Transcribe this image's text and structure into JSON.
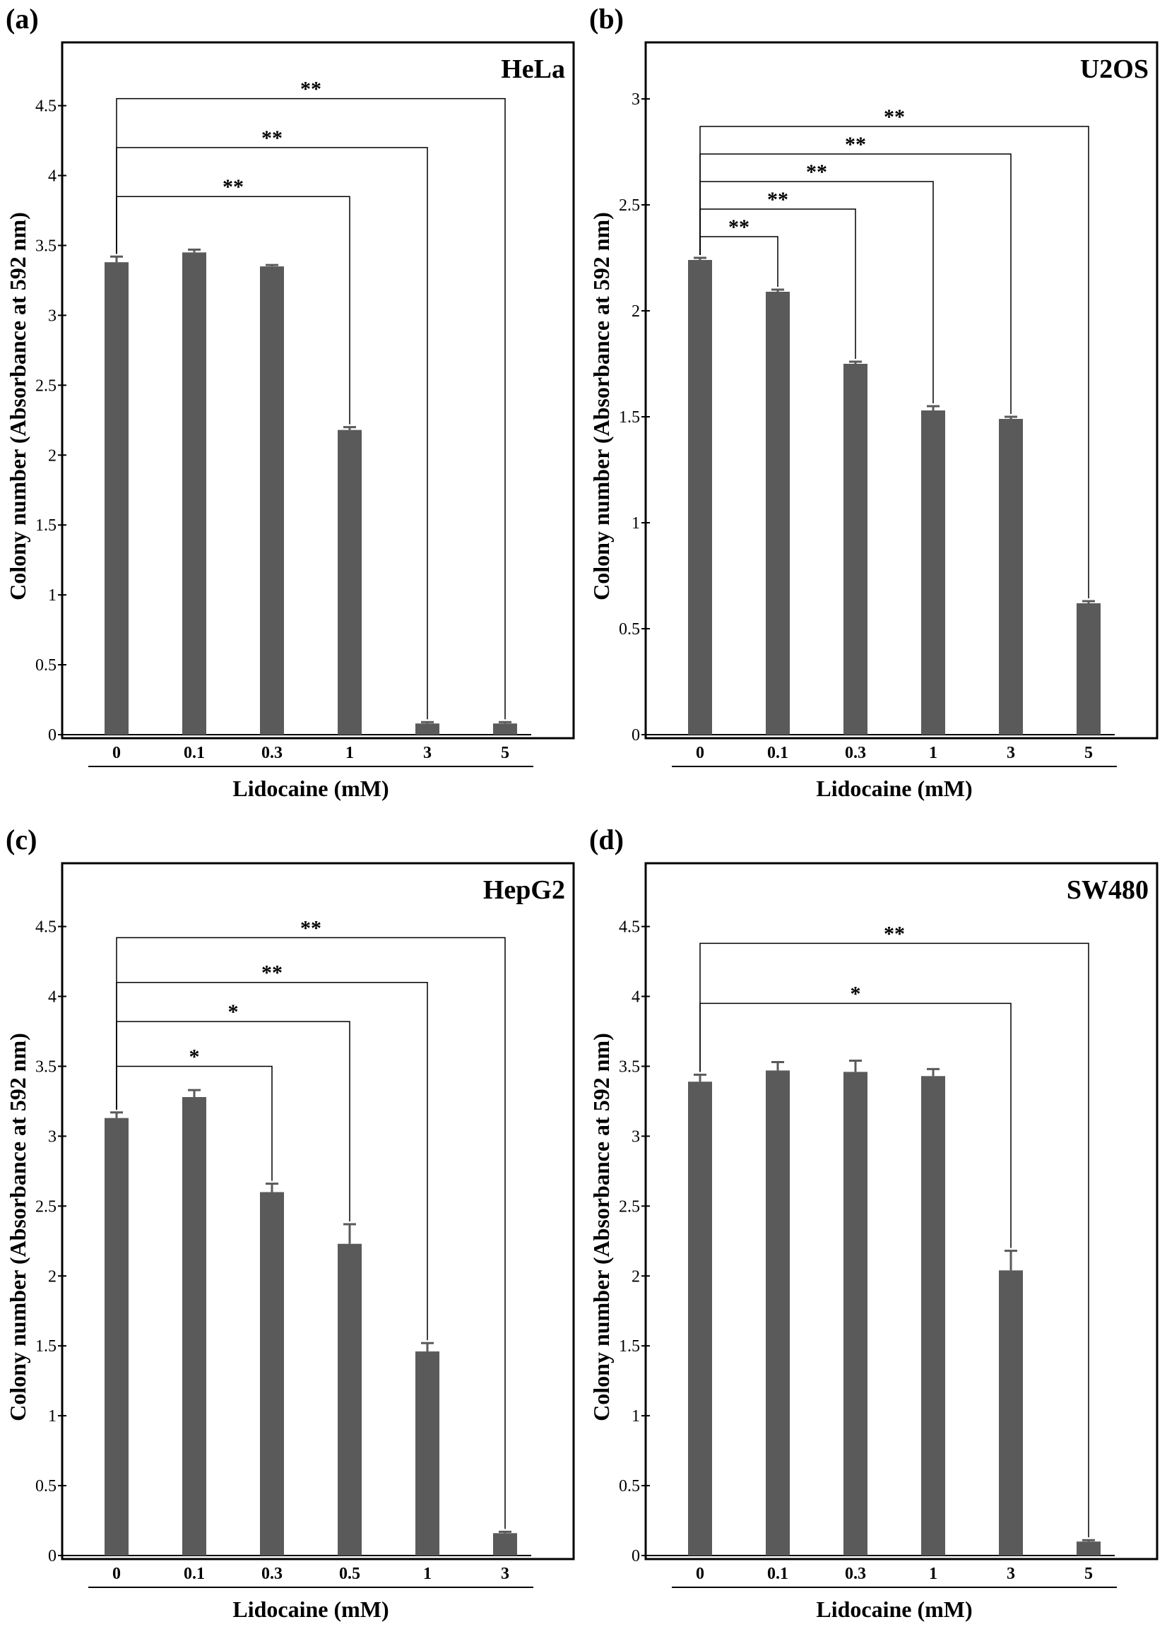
{
  "chart_data": [
    {
      "type": "bar",
      "panel_label": "(a)",
      "title": "HeLa",
      "ylabel": "Colony number (Absorbance at 592 nm)",
      "xlabel": "Lidocaine (mM)",
      "categories": [
        "0",
        "0.1",
        "0.3",
        "1",
        "3",
        "5"
      ],
      "values": [
        3.38,
        3.45,
        3.35,
        2.18,
        0.08,
        0.08
      ],
      "errors": [
        0.04,
        0.02,
        0.01,
        0.02,
        0.01,
        0.01
      ],
      "ylim": [
        0,
        4.7
      ],
      "yticks": [
        "0",
        "0.5",
        "1",
        "1.5",
        "2",
        "2.5",
        "3",
        "3.5",
        "4",
        "4.5"
      ],
      "bar_color": "#5a5a5a",
      "comparisons": [
        {
          "from": 0,
          "to": 3,
          "label": "**",
          "level": 3.85
        },
        {
          "from": 0,
          "to": 4,
          "label": "**",
          "level": 4.2
        },
        {
          "from": 0,
          "to": 5,
          "label": "**",
          "level": 4.55
        }
      ]
    },
    {
      "type": "bar",
      "panel_label": "(b)",
      "title": "U2OS",
      "ylabel": "Colony number (Absorbance at 592 nm)",
      "xlabel": "Lidocaine (mM)",
      "categories": [
        "0",
        "0.1",
        "0.3",
        "1",
        "3",
        "5"
      ],
      "values": [
        2.24,
        2.09,
        1.75,
        1.53,
        1.49,
        0.62
      ],
      "errors": [
        0.01,
        0.01,
        0.01,
        0.02,
        0.01,
        0.01
      ],
      "ylim": [
        0,
        3.1
      ],
      "yticks": [
        "0",
        "0.5",
        "1",
        "1.5",
        "2",
        "2.5",
        "3"
      ],
      "bar_color": "#5a5a5a",
      "comparisons": [
        {
          "from": 0,
          "to": 1,
          "label": "**",
          "level": 2.35
        },
        {
          "from": 0,
          "to": 2,
          "label": "**",
          "level": 2.48
        },
        {
          "from": 0,
          "to": 3,
          "label": "**",
          "level": 2.61
        },
        {
          "from": 0,
          "to": 4,
          "label": "**",
          "level": 2.74
        },
        {
          "from": 0,
          "to": 5,
          "label": "**",
          "level": 2.87
        }
      ]
    },
    {
      "type": "bar",
      "panel_label": "(c)",
      "title": "HepG2",
      "ylabel": "Colony number (Absorbance at 592 nm)",
      "xlabel": "Lidocaine (mM)",
      "categories": [
        "0",
        "0.1",
        "0.3",
        "0.5",
        "1",
        "3"
      ],
      "values": [
        3.13,
        3.28,
        2.6,
        2.23,
        1.46,
        0.16
      ],
      "errors": [
        0.04,
        0.05,
        0.06,
        0.14,
        0.06,
        0.01
      ],
      "ylim": [
        0,
        4.7
      ],
      "yticks": [
        "0",
        "0.5",
        "1",
        "1.5",
        "2",
        "2.5",
        "3",
        "3.5",
        "4",
        "4.5"
      ],
      "bar_color": "#5a5a5a",
      "comparisons": [
        {
          "from": 0,
          "to": 2,
          "label": "*",
          "level": 3.5
        },
        {
          "from": 0,
          "to": 3,
          "label": "*",
          "level": 3.82
        },
        {
          "from": 0,
          "to": 4,
          "label": "**",
          "level": 4.1
        },
        {
          "from": 0,
          "to": 5,
          "label": "**",
          "level": 4.42
        }
      ]
    },
    {
      "type": "bar",
      "panel_label": "(d)",
      "title": "SW480",
      "ylabel": "Colony number (Absorbance at 592 nm)",
      "xlabel": "Lidocaine (mM)",
      "categories": [
        "0",
        "0.1",
        "0.3",
        "1",
        "3",
        "5"
      ],
      "values": [
        3.39,
        3.47,
        3.46,
        3.43,
        2.04,
        0.1
      ],
      "errors": [
        0.05,
        0.06,
        0.08,
        0.05,
        0.14,
        0.01
      ],
      "ylim": [
        0,
        4.7
      ],
      "yticks": [
        "0",
        "0.5",
        "1",
        "1.5",
        "2",
        "2.5",
        "3",
        "3.5",
        "4",
        "4.5"
      ],
      "bar_color": "#5a5a5a",
      "comparisons": [
        {
          "from": 0,
          "to": 4,
          "label": "*",
          "level": 3.95
        },
        {
          "from": 0,
          "to": 5,
          "label": "**",
          "level": 4.38
        }
      ]
    }
  ]
}
